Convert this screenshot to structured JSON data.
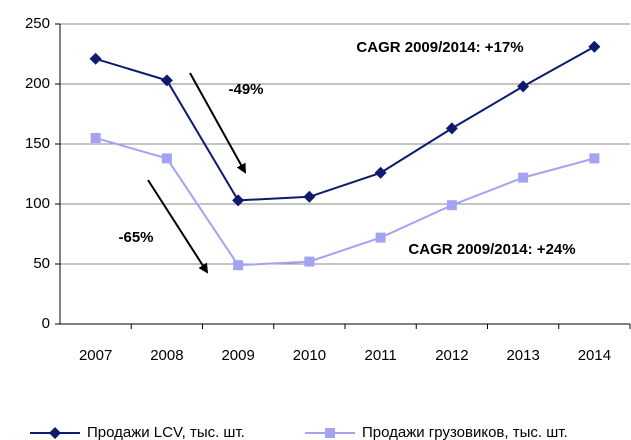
{
  "chart_data": {
    "type": "line",
    "categories": [
      "2007",
      "2008",
      "2009",
      "2010",
      "2011",
      "2012",
      "2013",
      "2014"
    ],
    "series": [
      {
        "name": "Продажи LCV, тыс. шт.",
        "color": "#0d1a6e",
        "marker": "diamond",
        "values": [
          221,
          203,
          103,
          106,
          126,
          163,
          198,
          231
        ]
      },
      {
        "name": "Продажи грузовиков, тыс. шт.",
        "color": "#a3a3f2",
        "marker": "square",
        "values": [
          155,
          138,
          49,
          52,
          72,
          99,
          122,
          138
        ]
      }
    ],
    "ylim": [
      0,
      250
    ],
    "yticks": [
      0,
      50,
      100,
      150,
      200,
      250
    ],
    "grid": true,
    "annotations": [
      "CAGR 2009/2014: +17%",
      "CAGR 2009/2014: +24%",
      "-49%",
      "-65%"
    ]
  }
}
